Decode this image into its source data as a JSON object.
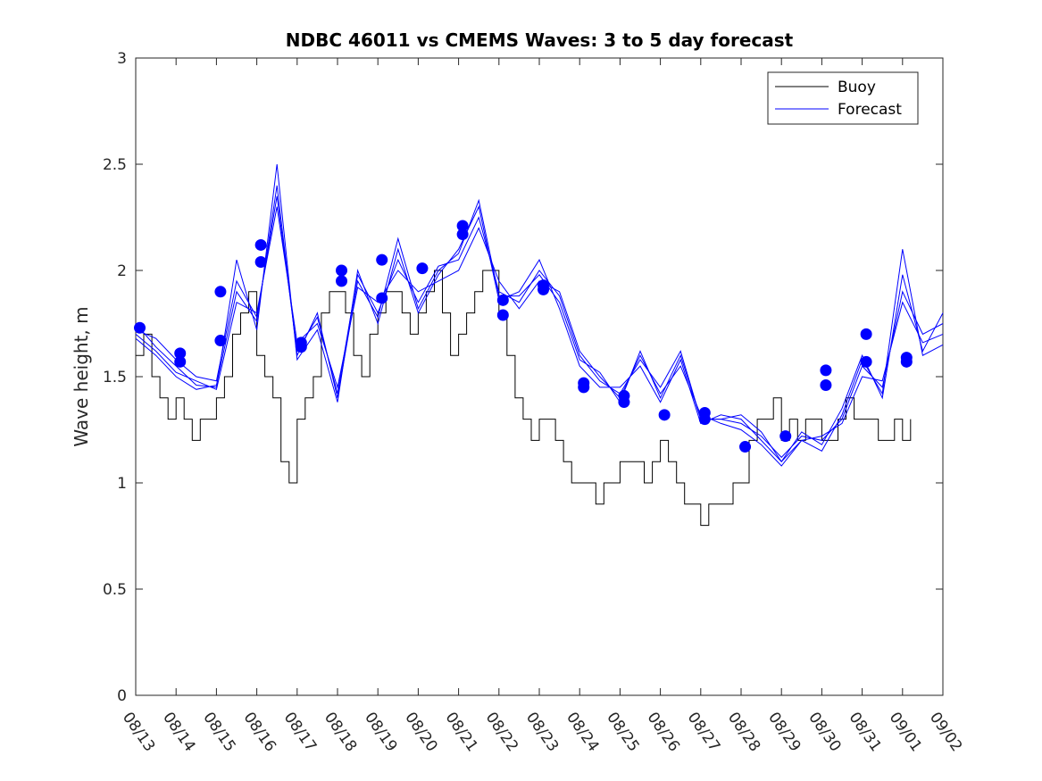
{
  "chart_data": {
    "type": "line",
    "title": "NDBC 46011 vs CMEMS Waves: 3 to 5 day forecast",
    "xlabel": "",
    "ylabel": "Wave height, m",
    "xlim": [
      0,
      20
    ],
    "ylim": [
      0,
      3
    ],
    "grid": false,
    "legend_position": "top-right",
    "x_tick_labels": [
      "08/13",
      "08/14",
      "08/15",
      "08/16",
      "08/17",
      "08/18",
      "08/19",
      "08/20",
      "08/21",
      "08/22",
      "08/23",
      "08/24",
      "08/25",
      "08/26",
      "08/27",
      "08/28",
      "08/29",
      "08/30",
      "08/31",
      "09/01",
      "09/02"
    ],
    "y_ticks": [
      0,
      0.5,
      1,
      1.5,
      2,
      2.5,
      3
    ],
    "y_tick_labels": [
      "0",
      "0.5",
      "1",
      "1.5",
      "2",
      "2.5",
      "3"
    ],
    "legend": [
      {
        "label": "Buoy",
        "color": "#000000"
      },
      {
        "label": "Forecast",
        "color": "#0000ff"
      }
    ],
    "series": [
      {
        "name": "Buoy",
        "color": "#000000",
        "step": true,
        "x": [
          0.0,
          0.2,
          0.4,
          0.6,
          0.8,
          1.0,
          1.2,
          1.4,
          1.6,
          1.8,
          2.0,
          2.2,
          2.4,
          2.6,
          2.8,
          3.0,
          3.2,
          3.4,
          3.6,
          3.8,
          4.0,
          4.2,
          4.4,
          4.6,
          4.8,
          5.0,
          5.2,
          5.4,
          5.6,
          5.8,
          6.0,
          6.2,
          6.4,
          6.6,
          6.8,
          7.0,
          7.2,
          7.4,
          7.6,
          7.8,
          8.0,
          8.2,
          8.4,
          8.6,
          8.8,
          9.0,
          9.2,
          9.4,
          9.6,
          9.8,
          10.0,
          10.2,
          10.4,
          10.6,
          10.8,
          11.0,
          11.2,
          11.4,
          11.6,
          11.8,
          12.0,
          12.2,
          12.4,
          12.6,
          12.8,
          13.0,
          13.2,
          13.4,
          13.6,
          13.8,
          14.0,
          14.2,
          14.4,
          14.6,
          14.8,
          15.0,
          15.2,
          15.4,
          15.6,
          15.8,
          16.0,
          16.2,
          16.4,
          16.6,
          16.8,
          17.0,
          17.2,
          17.4,
          17.6,
          17.8,
          18.0,
          18.2,
          18.4,
          18.6,
          18.8,
          19.0,
          19.2
        ],
        "values": [
          1.6,
          1.7,
          1.5,
          1.4,
          1.3,
          1.4,
          1.3,
          1.2,
          1.3,
          1.3,
          1.4,
          1.5,
          1.7,
          1.8,
          1.9,
          1.6,
          1.5,
          1.4,
          1.1,
          1.0,
          1.3,
          1.4,
          1.5,
          1.8,
          1.9,
          1.9,
          1.8,
          1.6,
          1.5,
          1.7,
          1.8,
          1.9,
          1.9,
          1.8,
          1.7,
          1.8,
          1.9,
          2.0,
          1.8,
          1.6,
          1.7,
          1.8,
          1.9,
          2.0,
          2.0,
          1.8,
          1.6,
          1.4,
          1.3,
          1.2,
          1.3,
          1.3,
          1.2,
          1.1,
          1.0,
          1.0,
          1.0,
          0.9,
          1.0,
          1.0,
          1.1,
          1.1,
          1.1,
          1.0,
          1.1,
          1.2,
          1.1,
          1.0,
          0.9,
          0.9,
          0.8,
          0.9,
          0.9,
          0.9,
          1.0,
          1.0,
          1.2,
          1.3,
          1.3,
          1.4,
          1.2,
          1.3,
          1.2,
          1.3,
          1.3,
          1.2,
          1.2,
          1.3,
          1.4,
          1.3,
          1.3,
          1.3,
          1.2,
          1.2,
          1.3,
          1.2,
          1.3
        ]
      },
      {
        "name": "Forecast",
        "color": "#0000ff",
        "x": [
          0,
          0.5,
          1,
          1.5,
          2,
          2.5,
          3,
          3.5,
          4,
          4.5,
          5,
          5.5,
          6,
          6.5,
          7,
          7.5,
          8,
          8.5,
          9,
          9.5,
          10,
          10.5,
          11,
          11.5,
          12,
          12.5,
          13,
          13.5,
          14,
          14.5,
          15,
          15.5,
          16,
          16.5,
          17,
          17.5,
          18,
          18.5,
          19,
          19.5,
          20
        ],
        "values": [
          1.72,
          1.68,
          1.58,
          1.5,
          1.48,
          1.95,
          1.78,
          2.35,
          1.62,
          1.78,
          1.42,
          1.98,
          1.8,
          2.05,
          1.85,
          2.02,
          2.05,
          2.25,
          1.9,
          1.85,
          2.0,
          1.88,
          1.6,
          1.48,
          1.42,
          1.58,
          1.45,
          1.62,
          1.3,
          1.3,
          1.28,
          1.22,
          1.12,
          1.22,
          1.2,
          1.3,
          1.55,
          1.45,
          1.9,
          1.7,
          1.75
        ]
      },
      {
        "name": "Forecast",
        "color": "#0000ff",
        "x": [
          0,
          0.5,
          1,
          1.5,
          2,
          2.5,
          3,
          3.5,
          4,
          4.5,
          5,
          5.5,
          6,
          6.5,
          7,
          7.5,
          8,
          8.5,
          9,
          9.5,
          10,
          10.5,
          11,
          11.5,
          12,
          12.5,
          13,
          13.5,
          14,
          14.5,
          15,
          15.5,
          16,
          16.5,
          17,
          17.5,
          18,
          18.5,
          19,
          19.5,
          20
        ],
        "values": [
          1.75,
          1.64,
          1.55,
          1.46,
          1.45,
          2.05,
          1.72,
          2.5,
          1.58,
          1.72,
          1.38,
          2.0,
          1.75,
          2.1,
          1.8,
          1.98,
          2.1,
          2.3,
          1.86,
          1.9,
          2.05,
          1.82,
          1.55,
          1.45,
          1.45,
          1.55,
          1.38,
          1.58,
          1.28,
          1.32,
          1.3,
          1.2,
          1.1,
          1.24,
          1.18,
          1.35,
          1.6,
          1.4,
          1.98,
          1.62,
          1.8
        ]
      },
      {
        "name": "Forecast",
        "color": "#0000ff",
        "x": [
          0,
          0.5,
          1,
          1.5,
          2,
          2.5,
          3,
          3.5,
          4,
          4.5,
          5,
          5.5,
          6,
          6.5,
          7,
          7.5,
          8,
          8.5,
          9,
          9.5,
          10,
          10.5,
          11,
          11.5,
          12,
          12.5,
          13,
          13.5,
          14,
          14.5,
          15,
          15.5,
          16,
          16.5,
          17,
          17.5,
          18,
          18.5,
          19,
          19.5,
          20
        ],
        "values": [
          1.7,
          1.62,
          1.52,
          1.48,
          1.44,
          1.85,
          1.8,
          2.3,
          1.66,
          1.75,
          1.45,
          1.92,
          1.85,
          2.0,
          1.9,
          1.95,
          2.0,
          2.2,
          1.95,
          1.82,
          1.95,
          1.9,
          1.62,
          1.5,
          1.4,
          1.6,
          1.42,
          1.55,
          1.32,
          1.28,
          1.25,
          1.18,
          1.08,
          1.2,
          1.22,
          1.28,
          1.5,
          1.48,
          1.85,
          1.66,
          1.7
        ]
      },
      {
        "name": "Forecast",
        "color": "#0000ff",
        "x": [
          0,
          0.5,
          1,
          1.5,
          2,
          2.5,
          3,
          3.5,
          4,
          4.5,
          5,
          5.5,
          6,
          6.5,
          7,
          7.5,
          8,
          8.5,
          9,
          9.5,
          10,
          10.5,
          11,
          11.5,
          12,
          12.5,
          13,
          13.5,
          14,
          14.5,
          15,
          15.5,
          16,
          16.5,
          17,
          17.5,
          18,
          18.5,
          19,
          19.5,
          20
        ],
        "values": [
          1.68,
          1.6,
          1.5,
          1.44,
          1.46,
          1.9,
          1.76,
          2.4,
          1.6,
          1.8,
          1.4,
          1.95,
          1.78,
          2.15,
          1.82,
          2.0,
          2.08,
          2.33,
          1.88,
          1.88,
          1.98,
          1.85,
          1.58,
          1.52,
          1.38,
          1.62,
          1.4,
          1.6,
          1.3,
          1.3,
          1.32,
          1.24,
          1.1,
          1.2,
          1.15,
          1.32,
          1.58,
          1.42,
          2.1,
          1.6,
          1.65
        ]
      }
    ],
    "forecast_markers": {
      "x": [
        0.1,
        1.1,
        1.1,
        2.1,
        2.1,
        3.1,
        3.1,
        4.1,
        4.1,
        5.1,
        5.1,
        6.1,
        6.1,
        7.1,
        8.1,
        8.1,
        9.1,
        9.1,
        10.1,
        10.1,
        11.1,
        11.1,
        12.1,
        12.1,
        13.1,
        14.1,
        14.1,
        15.1,
        16.1,
        17.1,
        17.1,
        18.1,
        18.1,
        19.1,
        19.1
      ],
      "values": [
        1.73,
        1.61,
        1.57,
        1.9,
        1.67,
        2.12,
        2.04,
        1.66,
        1.64,
        2.0,
        1.95,
        2.05,
        1.87,
        2.01,
        2.21,
        2.17,
        1.86,
        1.79,
        1.93,
        1.91,
        1.47,
        1.45,
        1.41,
        1.38,
        1.32,
        1.33,
        1.3,
        1.17,
        1.22,
        1.53,
        1.46,
        1.7,
        1.57,
        1.59,
        1.57
      ]
    }
  }
}
